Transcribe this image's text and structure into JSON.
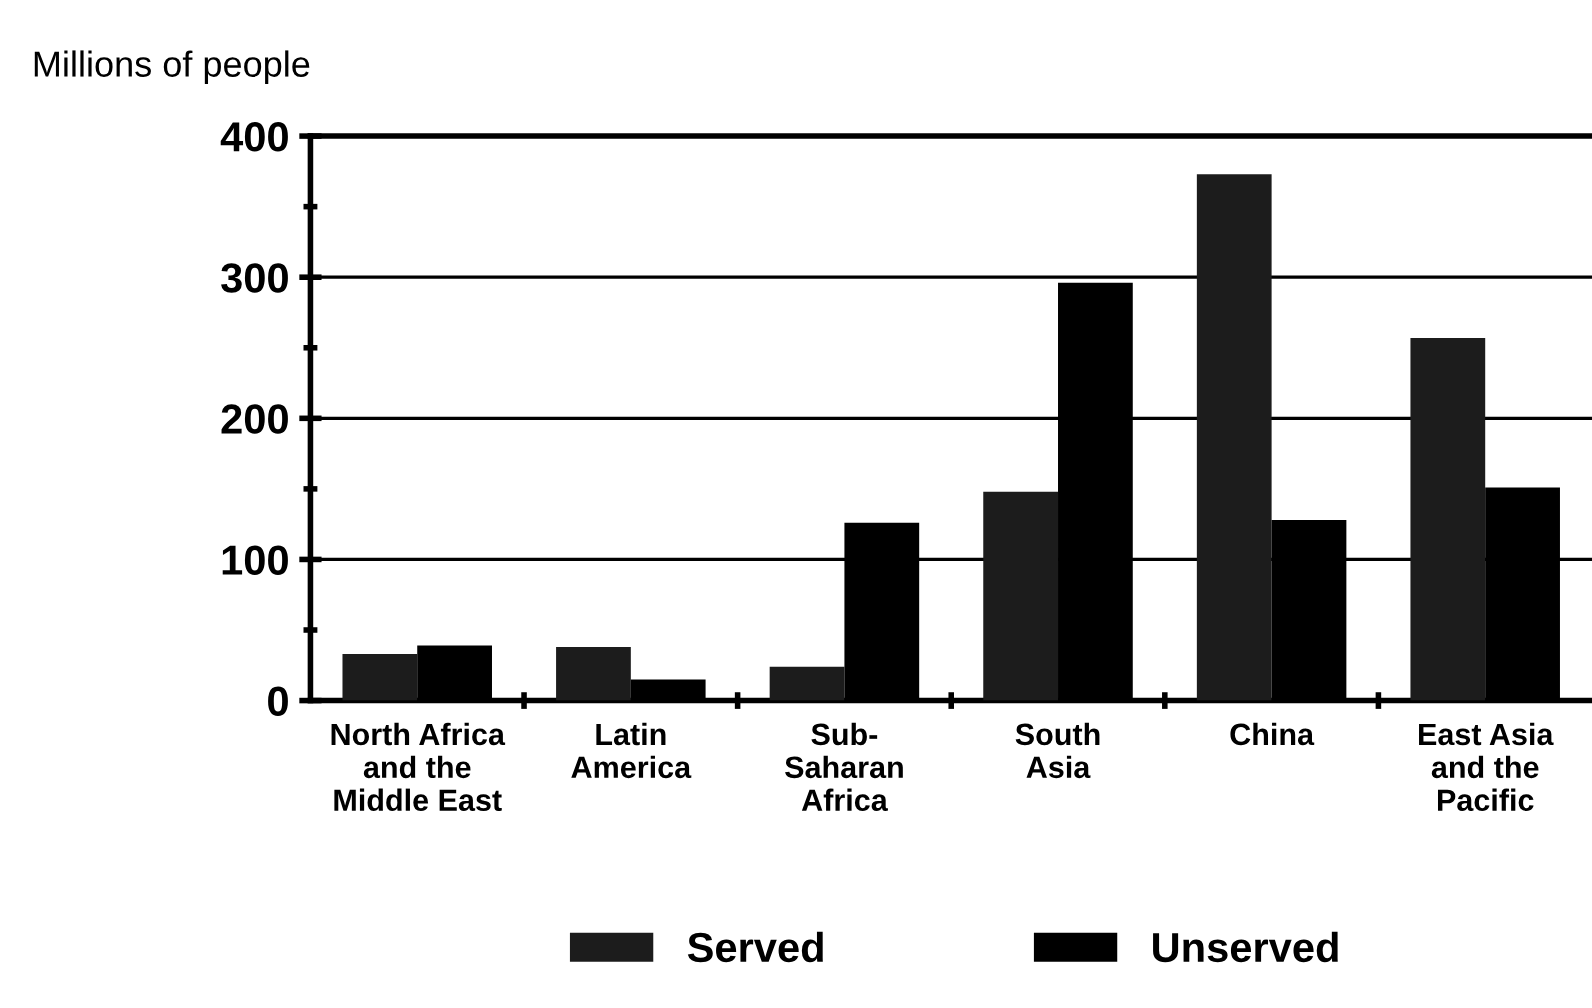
{
  "chart_data": {
    "type": "bar",
    "ylabel": "Millions of people",
    "categories": [
      "North Africa\nand the\nMiddle East",
      "Latin\nAmerica",
      "Sub-\nSaharan\nAfrica",
      "South\nAsia",
      "China",
      "East Asia\nand the\nPacific"
    ],
    "series": [
      {
        "name": "Served",
        "color": "#1c1c1c",
        "values": [
          33,
          38,
          24,
          148,
          373,
          257
        ]
      },
      {
        "name": "Unserved",
        "color": "#000000",
        "values": [
          39,
          15,
          126,
          296,
          128,
          151
        ]
      }
    ],
    "ylim": [
      0,
      400
    ],
    "yticks": [
      0,
      100,
      200,
      300,
      400
    ],
    "grid": "y",
    "legend": "bottom"
  }
}
